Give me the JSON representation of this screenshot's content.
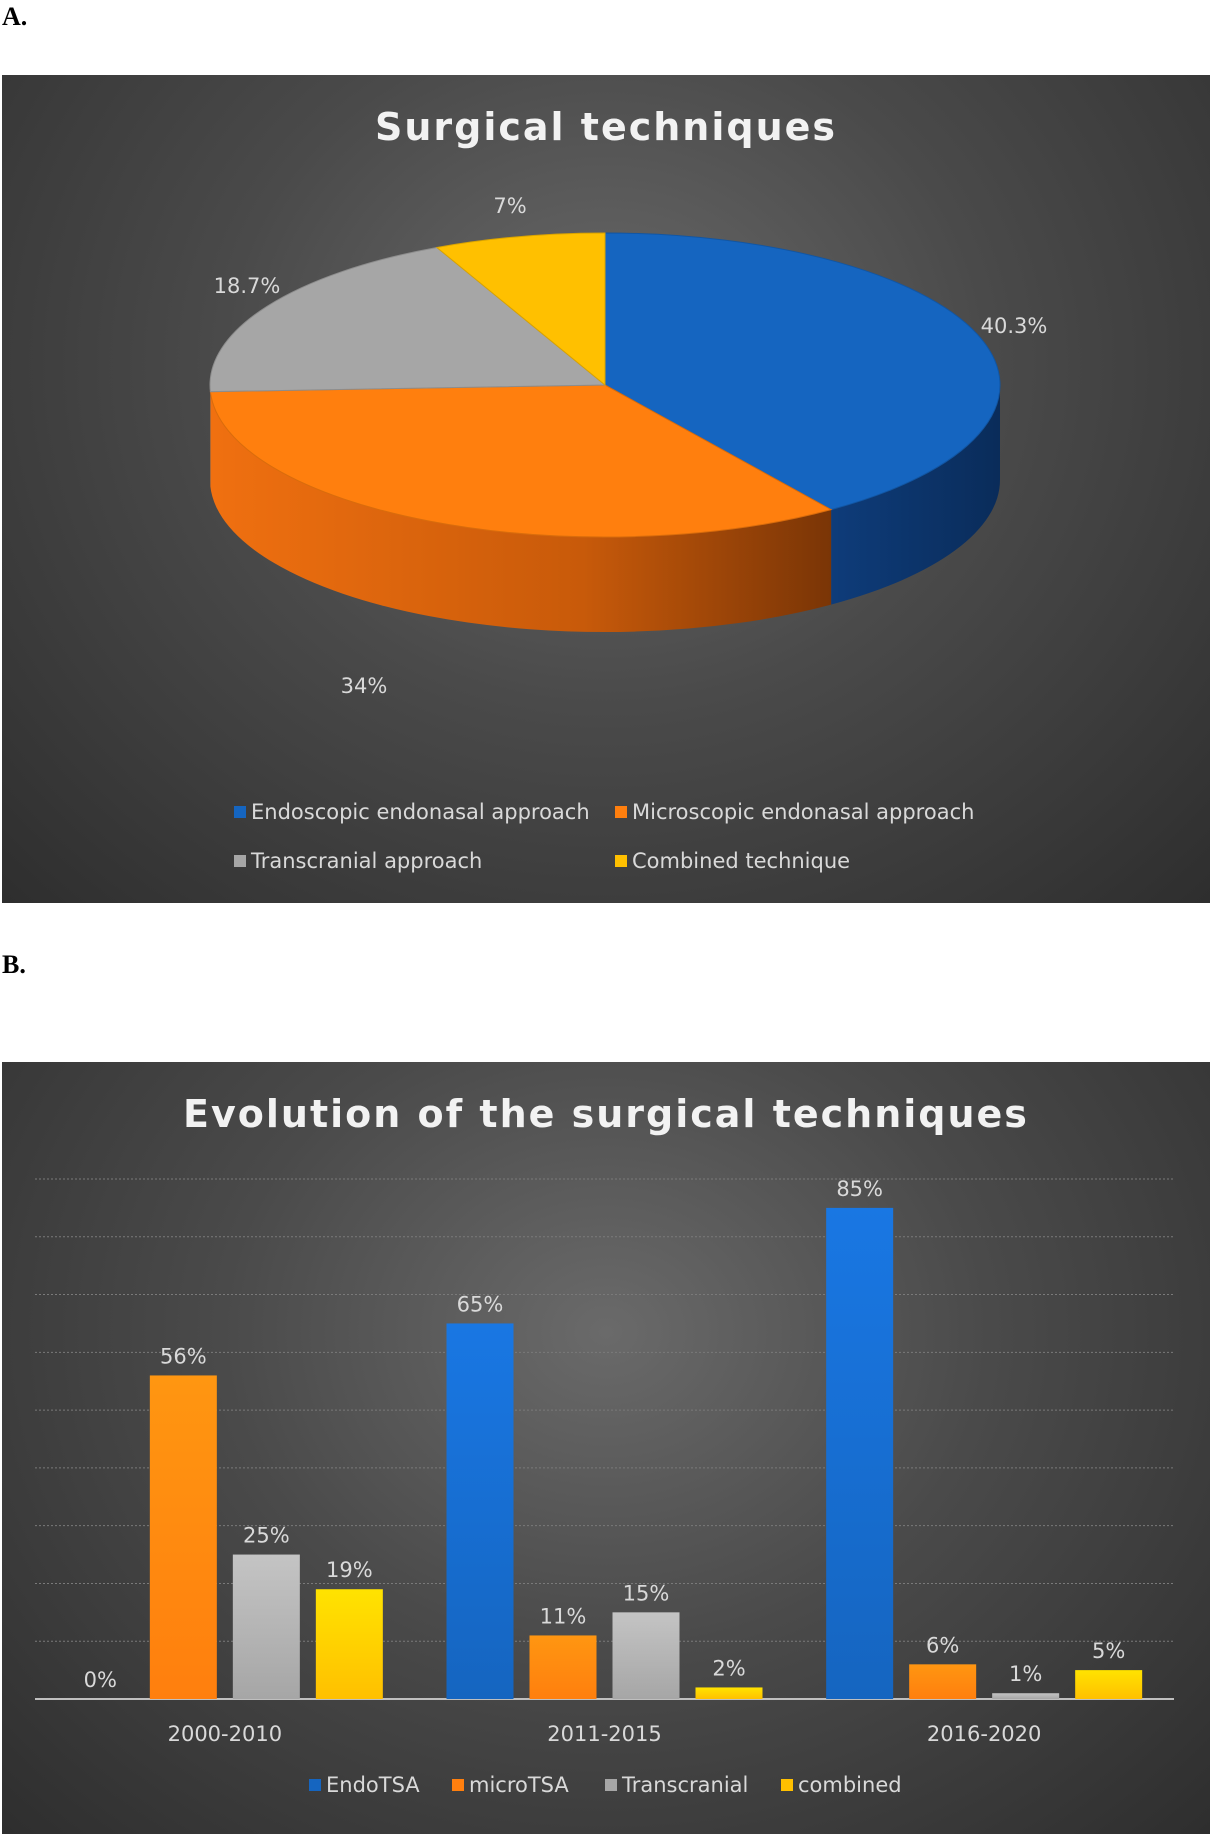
{
  "panels": {
    "a": "A.",
    "b": "B."
  },
  "chart_data": [
    {
      "type": "pie",
      "title": "Surgical techniques",
      "slices": [
        {
          "name": "Endoscopic endonasal approach",
          "value": 40.3,
          "label": "40.3%",
          "color": "#1565c0"
        },
        {
          "name": "Microscopic endonasal approach",
          "value": 34,
          "label": "34%",
          "color": "#ff7f0e"
        },
        {
          "name": "Transcranial approach",
          "value": 18.7,
          "label": "18.7%",
          "color": "#a6a6a6"
        },
        {
          "name": "Combined technique",
          "value": 7,
          "label": "7%",
          "color": "#ffc000"
        }
      ],
      "legend_position": "bottom"
    },
    {
      "type": "bar",
      "title": "Evolution of the surgical techniques",
      "categories": [
        "2000-2010",
        "2011-2015",
        "2016-2020"
      ],
      "series": [
        {
          "name": "EndoTSA",
          "values": [
            0,
            65,
            85
          ],
          "labels": [
            "0%",
            "65%",
            "85%"
          ],
          "color": "#1565c0"
        },
        {
          "name": "microTSA",
          "values": [
            56,
            11,
            6
          ],
          "labels": [
            "56%",
            "11%",
            "6%"
          ],
          "color": "#ff7f0e"
        },
        {
          "name": "Transcranial",
          "values": [
            25,
            15,
            1
          ],
          "labels": [
            "25%",
            "15%",
            "1%"
          ],
          "color": "#a6a6a6"
        },
        {
          "name": "combined",
          "values": [
            19,
            2,
            5
          ],
          "labels": [
            "19%",
            "2%",
            "5%"
          ],
          "color": "#ffc000"
        }
      ],
      "ylim": [
        0,
        90
      ],
      "grid": true,
      "legend_position": "bottom"
    }
  ]
}
